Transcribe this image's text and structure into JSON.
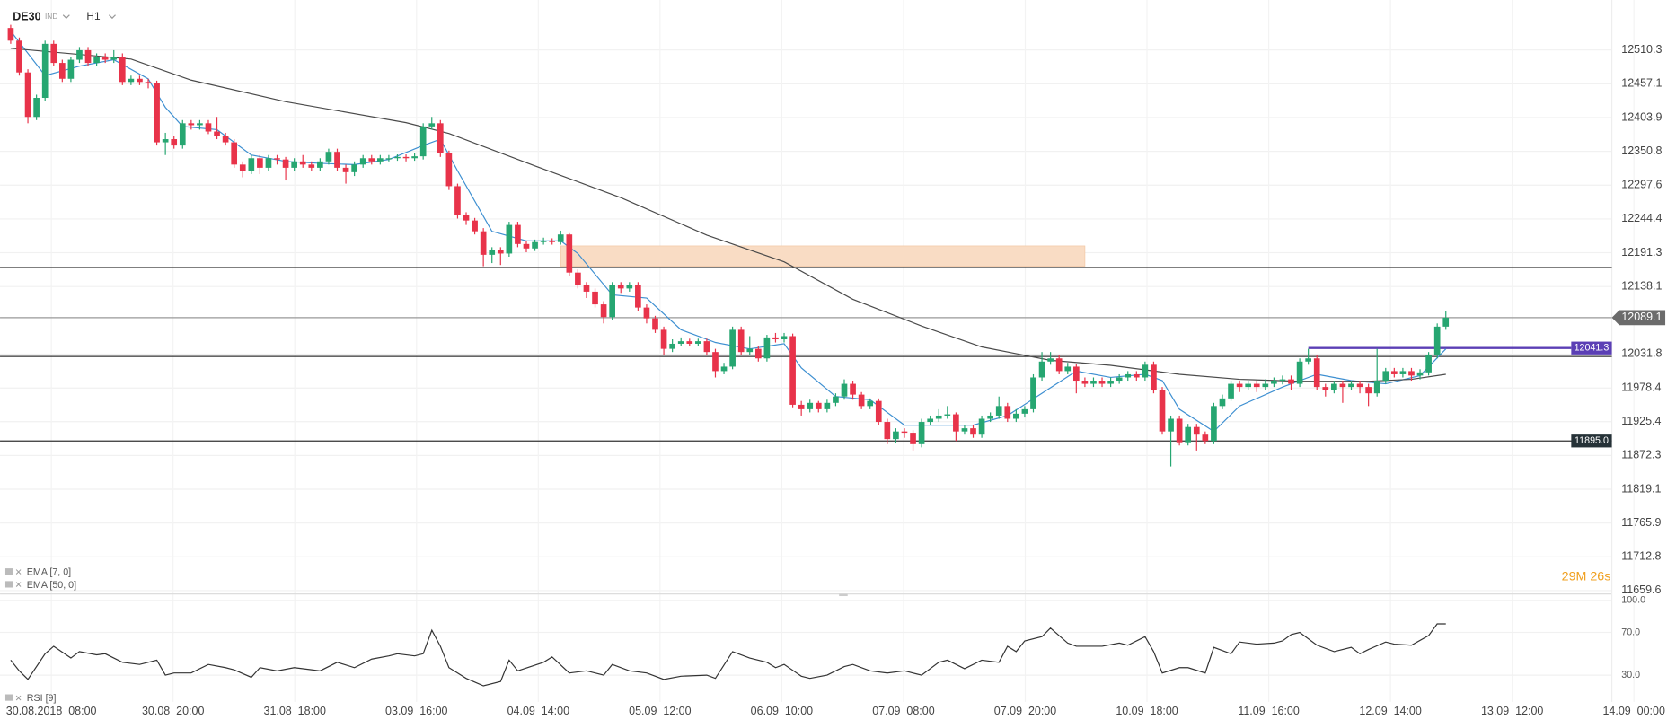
{
  "header": {
    "symbol": "DE30",
    "market": "IND",
    "timeframe": "H1"
  },
  "chart_data": {
    "type": "candlestick",
    "open": [
      12545,
      12525,
      12475,
      12405,
      12435,
      12520,
      12490,
      12465,
      12495,
      12510,
      12490,
      12500,
      12495,
      12500,
      12460,
      12465,
      12460,
      12458,
      12365,
      12370,
      12360,
      12395,
      12392,
      12395,
      12382,
      12375,
      12365,
      12330,
      12320,
      12340,
      12325,
      12340,
      12338,
      12325,
      12335,
      12330,
      12325,
      12335,
      12350,
      12325,
      12318,
      12330,
      12340,
      12335,
      12340,
      12340,
      12342,
      12340,
      12343,
      12390,
      12395,
      12348,
      12296,
      12250,
      12242,
      12225,
      12188,
      12195,
      12190,
      12235,
      12205,
      12198,
      12208,
      12210,
      12208,
      12220,
      12160,
      12140,
      12130,
      12110,
      12090,
      12140,
      12135,
      12140,
      12105,
      12088,
      12070,
      12040,
      12048,
      12052,
      12048,
      12052,
      12035,
      12005,
      12012,
      12070,
      12035,
      12040,
      12025,
      12058,
      12055,
      12060,
      11952,
      11945,
      11955,
      11945,
      11955,
      11965,
      11985,
      11968,
      11950,
      11958,
      11925,
      11898,
      11910,
      11908,
      11890,
      11925,
      11930,
      11935,
      11937,
      11910,
      11915,
      11905,
      11930,
      11935,
      11950,
      11930,
      11938,
      11945,
      11995,
      12020,
      12025,
      12005,
      12012,
      11990,
      11985,
      11990,
      11985,
      11990,
      11995,
      12000,
      11995,
      12015,
      11975,
      11910,
      11930,
      11893,
      11917,
      11905,
      11895,
      11950,
      11962,
      11985,
      11980,
      11985,
      11980,
      11985,
      11990,
      11992,
      11985,
      12020,
      12025,
      11980,
      11975,
      11985,
      11980,
      11985,
      11980,
      11970,
      11990,
      12005,
      12000,
      12005,
      11998,
      12003,
      12030,
      12075
    ],
    "high": [
      12550,
      12530,
      12480,
      12440,
      12525,
      12525,
      12495,
      12500,
      12515,
      12515,
      12505,
      12505,
      12510,
      12505,
      12470,
      12470,
      12465,
      12462,
      12380,
      12375,
      12400,
      12400,
      12400,
      12400,
      12405,
      12380,
      12370,
      12335,
      12345,
      12345,
      12345,
      12345,
      12342,
      12340,
      12345,
      12335,
      12340,
      12355,
      12355,
      12330,
      12335,
      12345,
      12345,
      12345,
      12345,
      12346,
      12346,
      12348,
      12395,
      12405,
      12400,
      12352,
      12300,
      12255,
      12246,
      12230,
      12200,
      12200,
      12240,
      12240,
      12210,
      12212,
      12215,
      12214,
      12226,
      12222,
      12165,
      12145,
      12135,
      12115,
      12145,
      12145,
      12145,
      12145,
      12110,
      12092,
      12075,
      12055,
      12058,
      12056,
      12056,
      12056,
      12040,
      12018,
      12075,
      12075,
      12060,
      12045,
      12062,
      12065,
      12065,
      12064,
      11958,
      11960,
      11958,
      11960,
      11970,
      11992,
      11990,
      11972,
      11962,
      11962,
      11930,
      11915,
      11915,
      11912,
      11930,
      11935,
      11945,
      11950,
      11940,
      11920,
      11920,
      11935,
      11940,
      11965,
      11955,
      11945,
      11950,
      12000,
      12035,
      12035,
      12030,
      12018,
      12016,
      11995,
      11995,
      11995,
      11995,
      12000,
      12005,
      12005,
      12020,
      12020,
      11980,
      11935,
      11935,
      11922,
      11922,
      11910,
      11955,
      11968,
      11990,
      11990,
      11990,
      11990,
      11992,
      11995,
      11998,
      11998,
      12025,
      12040,
      12030,
      11985,
      11990,
      11990,
      11990,
      11990,
      11985,
      12040,
      12010,
      12010,
      12010,
      12010,
      12008,
      12035,
      12080,
      12100
    ],
    "low": [
      12520,
      12470,
      12395,
      12400,
      12430,
      12485,
      12460,
      12460,
      12490,
      12485,
      12485,
      12490,
      12490,
      12455,
      12455,
      12455,
      12450,
      12360,
      12345,
      12355,
      12355,
      12385,
      12385,
      12378,
      12370,
      12360,
      12325,
      12310,
      12315,
      12315,
      12320,
      12330,
      12305,
      12320,
      12325,
      12320,
      12320,
      12330,
      12320,
      12300,
      12312,
      12325,
      12330,
      12330,
      12335,
      12336,
      12335,
      12336,
      12338,
      12385,
      12342,
      12290,
      12245,
      12235,
      12220,
      12170,
      12175,
      12172,
      12185,
      12200,
      12192,
      12194,
      12204,
      12204,
      12204,
      12155,
      12135,
      12120,
      12105,
      12080,
      12085,
      12128,
      12130,
      12100,
      12080,
      12065,
      12030,
      12035,
      12044,
      12044,
      12044,
      12030,
      11995,
      12000,
      12008,
      12030,
      12030,
      12020,
      12020,
      12050,
      12050,
      11948,
      11935,
      11940,
      11940,
      11940,
      11950,
      11960,
      11960,
      11945,
      11945,
      11920,
      11890,
      11892,
      11900,
      11880,
      11885,
      11920,
      11925,
      11930,
      11895,
      11905,
      11900,
      11900,
      11925,
      11930,
      11925,
      11925,
      11932,
      11940,
      11990,
      12015,
      12000,
      12000,
      11970,
      11980,
      11980,
      11980,
      11980,
      11985,
      11990,
      11990,
      11990,
      11970,
      11905,
      11855,
      11888,
      11888,
      11880,
      11890,
      11890,
      11945,
      11958,
      11972,
      11975,
      11972,
      11975,
      11980,
      11984,
      11975,
      11980,
      12015,
      11975,
      11965,
      11970,
      11955,
      11975,
      11970,
      11950,
      11965,
      11985,
      11995,
      11995,
      11990,
      11992,
      11998,
      12025,
      12070
    ],
    "close": [
      12525,
      12475,
      12405,
      12435,
      12520,
      12490,
      12465,
      12495,
      12510,
      12490,
      12500,
      12495,
      12500,
      12460,
      12465,
      12460,
      12458,
      12365,
      12370,
      12360,
      12395,
      12392,
      12395,
      12382,
      12375,
      12365,
      12330,
      12320,
      12340,
      12325,
      12340,
      12338,
      12325,
      12335,
      12330,
      12325,
      12335,
      12350,
      12325,
      12318,
      12330,
      12340,
      12335,
      12340,
      12340,
      12342,
      12340,
      12343,
      12390,
      12395,
      12348,
      12296,
      12250,
      12242,
      12225,
      12188,
      12195,
      12190,
      12235,
      12205,
      12198,
      12208,
      12210,
      12208,
      12220,
      12160,
      12140,
      12130,
      12110,
      12090,
      12140,
      12135,
      12140,
      12105,
      12088,
      12070,
      12040,
      12048,
      12052,
      12048,
      12052,
      12035,
      12005,
      12012,
      12070,
      12035,
      12040,
      12025,
      12058,
      12055,
      12060,
      11952,
      11945,
      11955,
      11945,
      11955,
      11965,
      11985,
      11968,
      11950,
      11958,
      11925,
      11898,
      11910,
      11908,
      11890,
      11925,
      11930,
      11935,
      11937,
      11910,
      11915,
      11905,
      11930,
      11935,
      11950,
      11930,
      11938,
      11945,
      11995,
      12020,
      12025,
      12005,
      12012,
      11990,
      11985,
      11990,
      11985,
      11990,
      11995,
      12000,
      11995,
      12015,
      11975,
      11910,
      11930,
      11893,
      11917,
      11905,
      11895,
      11950,
      11962,
      11985,
      11980,
      11985,
      11980,
      11985,
      11990,
      11992,
      11985,
      12020,
      12025,
      11980,
      11975,
      11985,
      11980,
      11985,
      11980,
      11970,
      11990,
      12005,
      12000,
      12005,
      11998,
      12003,
      12030,
      12075,
      12089.1
    ],
    "up_color": "#26a671",
    "down_color": "#e8334a",
    "ylim": [
      11656,
      12589
    ],
    "yticks": [
      12510.3,
      12457.1,
      12403.9,
      12350.8,
      12297.6,
      12244.4,
      12191.3,
      12138.1,
      12031.8,
      11978.4,
      11925.4,
      11872.3,
      11819.1,
      11765.9,
      11712.8,
      11659.6
    ],
    "x_labels": [
      "30.08.2018  08:00",
      "30.08  20:00",
      "31.08  18:00",
      "03.09  16:00",
      "04.09  14:00",
      "05.09  12:00",
      "06.09  10:00",
      "07.09  08:00",
      "07.09  20:00",
      "10.09  18:00",
      "11.09  16:00",
      "12.09  14:00",
      "13.09  12:00",
      "14.09  00:00"
    ],
    "overlays": [
      {
        "name": "EMA [7, 0]",
        "color": "#3d8fd1",
        "x": [
          0,
          4,
          8,
          12,
          16,
          18,
          20,
          24,
          28,
          32,
          36,
          40,
          44,
          48,
          50,
          52,
          56,
          60,
          64,
          66,
          70,
          74,
          78,
          82,
          86,
          90,
          92,
          96,
          100,
          104,
          108,
          112,
          116,
          120,
          124,
          128,
          132,
          134,
          136,
          140,
          143,
          148,
          152,
          156,
          160,
          164,
          167
        ],
        "values": [
          12540,
          12470,
          12485,
          12495,
          12465,
          12420,
          12390,
          12385,
          12345,
          12335,
          12332,
          12330,
          12338,
          12360,
          12370,
          12320,
          12225,
          12210,
          12210,
          12190,
          12125,
          12120,
          12070,
          12050,
          12040,
          12048,
          12010,
          11965,
          11960,
          11920,
          11920,
          11920,
          11935,
          11970,
          12005,
          11995,
          12000,
          11990,
          11945,
          11910,
          11950,
          11980,
          12000,
          11990,
          11985,
          11998,
          12040
        ]
      },
      {
        "name": "EMA [50, 0]",
        "color": "#4a4a4a",
        "x": [
          0,
          14,
          21,
          32,
          46,
          51,
          61,
          71,
          81,
          90,
          98,
          106,
          113,
          121,
          128,
          136,
          143,
          150,
          158,
          163,
          167
        ],
        "values": [
          12513,
          12496,
          12463,
          12429,
          12396,
          12379,
          12328,
          12278,
          12219,
          12177,
          12118,
          12076,
          12043,
          12022,
          12014,
          12000,
          11992,
          11989,
          11989,
          11992,
          12000
        ]
      }
    ],
    "levels": [
      {
        "value": 12168
      },
      {
        "value": 12028
      },
      {
        "value": 11895,
        "label": "11895.0"
      }
    ],
    "last_price": 12089.1,
    "alert_line": {
      "value": 12041.3,
      "start": 151,
      "color": "#5b3fb5"
    },
    "zone": {
      "low": 12170,
      "high": 12202,
      "start": 64,
      "end": 125,
      "color": "#f9dcc4"
    },
    "countdown": "29M 26s"
  },
  "rsi": {
    "name": "RSI [9]",
    "color": "#333333",
    "ylim": [
      5,
      105
    ],
    "yticks": [
      {
        "value": 100,
        "label": "100.0"
      },
      {
        "value": 70,
        "label": "70.0"
      },
      {
        "value": 30,
        "label": "30.0"
      }
    ],
    "x": [
      0,
      1,
      2,
      4,
      5,
      7,
      8,
      10,
      11,
      13,
      15,
      17,
      18,
      19,
      21,
      23,
      25,
      26,
      28,
      29,
      31,
      33,
      35,
      36,
      38,
      40,
      42,
      44,
      45,
      47,
      48,
      49,
      50,
      51,
      53,
      55,
      57,
      58,
      59,
      62,
      63,
      65,
      67,
      69,
      70,
      72,
      74,
      76,
      78,
      81,
      82,
      84,
      86,
      88,
      89,
      90,
      92,
      93,
      95,
      97,
      98,
      100,
      102,
      104,
      106,
      108,
      109,
      111,
      113,
      115,
      116,
      117,
      118,
      120,
      121,
      123,
      124,
      127,
      129,
      130,
      132,
      133,
      134,
      136,
      137,
      139,
      140,
      142,
      143,
      145,
      147,
      148,
      149,
      150,
      152,
      154,
      156,
      157,
      158,
      160,
      161,
      163,
      165,
      166,
      167
    ],
    "values": [
      44,
      34,
      26,
      50,
      57,
      46,
      52,
      49,
      50,
      42,
      40,
      44,
      30,
      32,
      32,
      40,
      37,
      35,
      28,
      37,
      34,
      37,
      35,
      34,
      42,
      37,
      45,
      48,
      50,
      48,
      50,
      72,
      57,
      37,
      27,
      20,
      24,
      44,
      34,
      42,
      47,
      32,
      34,
      30,
      40,
      34,
      32,
      26,
      29,
      30,
      27,
      52,
      46,
      42,
      37,
      40,
      29,
      27,
      30,
      38,
      40,
      34,
      32,
      34,
      30,
      42,
      44,
      36,
      44,
      42,
      57,
      52,
      62,
      66,
      74,
      60,
      57,
      57,
      60,
      58,
      66,
      52,
      32,
      37,
      37,
      32,
      56,
      50,
      61,
      59,
      60,
      62,
      68,
      70,
      58,
      52,
      56,
      50,
      54,
      61,
      59,
      58,
      67,
      78,
      78
    ]
  }
}
